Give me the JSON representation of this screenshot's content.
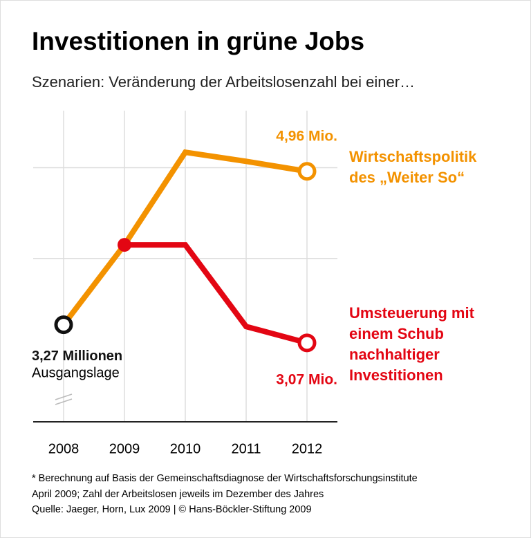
{
  "chart_data": {
    "type": "line",
    "title": "Investitionen in grüne Jobs",
    "subtitle": "Szenarien: Veränderung der Arbeitslosenzahl bei einer…",
    "categories": [
      "2008",
      "2009",
      "2010",
      "2011",
      "2012"
    ],
    "series": [
      {
        "name": "Wirtschaftspolitik des „Weiter So“",
        "color": "#f39200",
        "values": [
          3.27,
          4.15,
          5.17,
          5.07,
          4.96
        ],
        "value_labels": [
          "3,27 Millionen",
          null,
          null,
          null,
          "4,96 Mio."
        ]
      },
      {
        "name": "Umsteuerung mit einem Schub nachhaltiger Investitionen",
        "color": "#e30613",
        "values": [
          null,
          4.15,
          4.15,
          3.25,
          3.07
        ],
        "value_labels": [
          null,
          null,
          null,
          null,
          "3,07 Mio."
        ]
      }
    ],
    "annotations": [
      "Ausgangslage"
    ],
    "ylim": [
      2.2,
      5.4
    ],
    "yticks": [
      4,
      5
    ],
    "grid": true,
    "footnotes": [
      "* Berechnung auf Basis der Gemeinschaftsdiagnose der Wirtschaftsforschungsinstitute",
      "April 2009; Zahl der Arbeitslosen jeweils im Dezember des Jahres",
      "Quelle: Jaeger, Horn, Lux 2009 | © Hans-Böckler-Stiftung 2009"
    ]
  }
}
